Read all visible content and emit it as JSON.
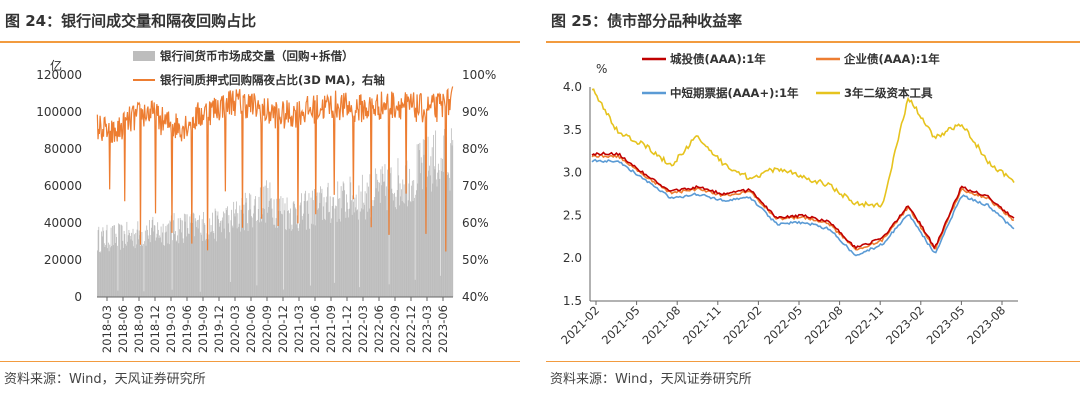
{
  "left_panel": {
    "title": "图 24：银行间成交量和隔夜回购占比",
    "source": "资料来源：Wind，天风证券研究所"
  },
  "right_panel": {
    "title": "图 25：债市部分品种收益率",
    "source": "资料来源：Wind，天风证券研究所"
  },
  "colors": {
    "title_rule": "#f29b3f",
    "volume_bars": "#bdbdbd",
    "overnight_ratio": "#ed7d31",
    "urban_bond": "#c00000",
    "corporate_bond": "#ed7d31",
    "mtn": "#5b9bd5",
    "tier2": "#e6c31e"
  },
  "chart_data": [
    {
      "type": "bar",
      "y_unit_label": "亿",
      "y_left_ticks": [
        "120000",
        "100000",
        "80000",
        "60000",
        "40000",
        "20000",
        "0"
      ],
      "y_right_ticks": [
        "100%",
        "90%",
        "80%",
        "70%",
        "60%",
        "50%",
        "40%"
      ],
      "ylim_left": [
        0,
        120000
      ],
      "ylim_right": [
        40,
        100
      ],
      "x_ticks": [
        "2018-03",
        "2018-06",
        "2018-09",
        "2018-12",
        "2019-03",
        "2019-06",
        "2019-09",
        "2019-12",
        "2020-03",
        "2020-06",
        "2020-09",
        "2020-12",
        "2021-03",
        "2021-06",
        "2021-09",
        "2021-12",
        "2022-03",
        "2022-06",
        "2022-09",
        "2022-12",
        "2023-03",
        "2023-06"
      ],
      "legend_position": "top",
      "series": [
        {
          "name": "银行间货币市场成交量（回购+拆借）",
          "axis": "left",
          "kind": "bar",
          "values": [
            33000,
            34000,
            35000,
            37000,
            38000,
            40000,
            40000,
            41000,
            45000,
            50000,
            55000,
            49000,
            48000,
            52000,
            54000,
            56000,
            58000,
            62000,
            66000,
            72000,
            78000,
            80000
          ]
        },
        {
          "name": "银行间质押式回购隔夜占比(3D MA)，右轴",
          "axis": "right",
          "kind": "line",
          "values": [
            86,
            84,
            88,
            90,
            87,
            86,
            89,
            91,
            93,
            92,
            90,
            89,
            90,
            91,
            92,
            91,
            91,
            92,
            92,
            91,
            91,
            93
          ]
        }
      ]
    },
    {
      "type": "line",
      "y_unit_label": "%",
      "ylim": [
        1.5,
        4.0
      ],
      "y_ticks": [
        "4.0",
        "3.5",
        "3.0",
        "2.5",
        "2.0",
        "1.5"
      ],
      "x_ticks": [
        "2021-02",
        "2021-05",
        "2021-08",
        "2021-11",
        "2022-02",
        "2022-05",
        "2022-08",
        "2022-11",
        "2023-02",
        "2023-05",
        "2023-08"
      ],
      "legend_position": "top",
      "series": [
        {
          "name": "城投债(AAA):1年",
          "values": [
            3.22,
            3.22,
            2.98,
            2.78,
            2.83,
            2.75,
            2.8,
            2.47,
            2.5,
            2.42,
            2.12,
            2.23,
            2.62,
            2.12,
            2.83,
            2.72,
            2.46
          ]
        },
        {
          "name": "企业债(AAA):1年",
          "values": [
            3.2,
            3.19,
            2.96,
            2.76,
            2.81,
            2.73,
            2.78,
            2.46,
            2.48,
            2.4,
            2.1,
            2.21,
            2.6,
            2.1,
            2.8,
            2.7,
            2.44
          ]
        },
        {
          "name": "中短期票据(AAA+):1年",
          "values": [
            3.14,
            3.13,
            2.92,
            2.7,
            2.75,
            2.67,
            2.71,
            2.4,
            2.42,
            2.34,
            2.03,
            2.16,
            2.52,
            2.05,
            2.73,
            2.62,
            2.34
          ]
        },
        {
          "name": "3年二级资本工具",
          "values": [
            4.0,
            3.46,
            3.32,
            3.08,
            3.43,
            3.1,
            2.93,
            3.05,
            2.95,
            2.85,
            2.64,
            2.62,
            3.88,
            3.4,
            3.58,
            3.14,
            2.88
          ]
        }
      ]
    }
  ]
}
